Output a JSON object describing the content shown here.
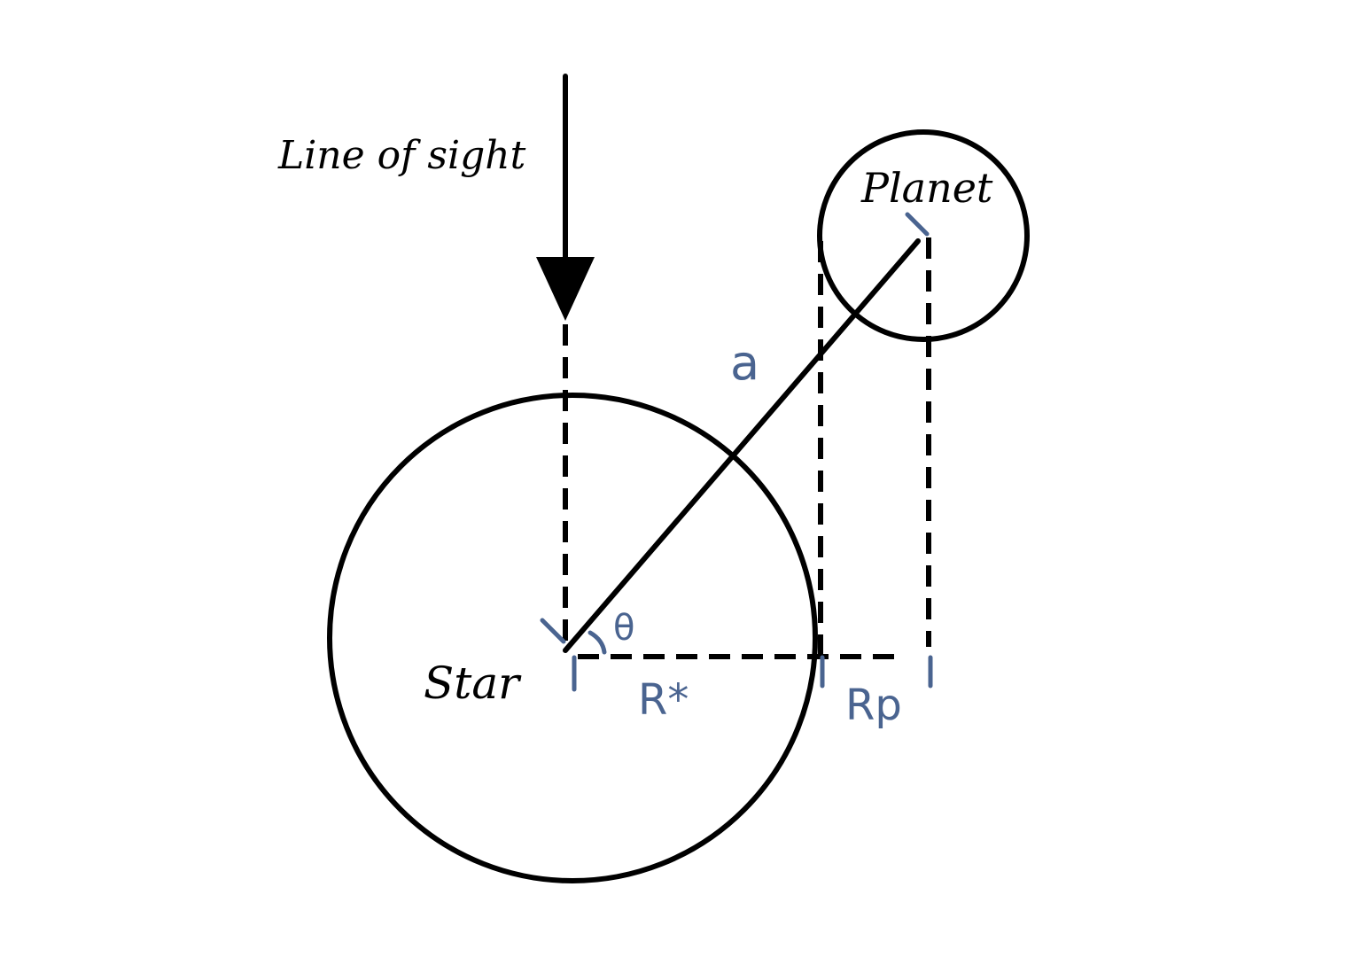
{
  "labels": {
    "line_of_sight": "Line of sight",
    "planet": "Planet",
    "star": "Star",
    "a": "a",
    "theta": "θ",
    "r_star": "R*",
    "r_p": "Rp"
  },
  "colors": {
    "ink": "#000000",
    "annotation": "#4a6490",
    "background": "#ffffff"
  }
}
